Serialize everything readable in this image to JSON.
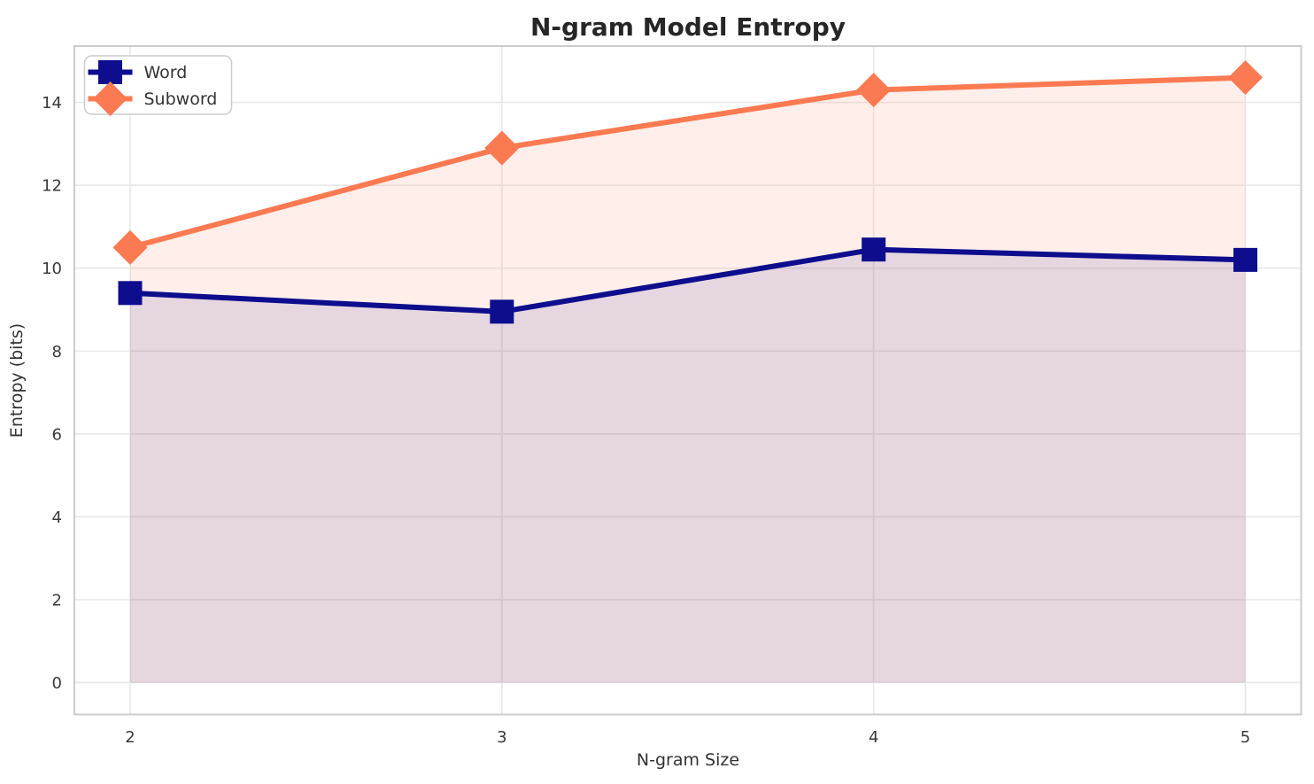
{
  "chart_data": {
    "type": "line",
    "title": "N-gram Model Entropy",
    "xlabel": "N-gram Size",
    "ylabel": "Entropy (bits)",
    "x": [
      2,
      3,
      4,
      5
    ],
    "series": [
      {
        "name": "Word",
        "marker": "square",
        "color": "#0d0d8e",
        "fill_alpha": 0.1,
        "values": [
          9.4,
          8.95,
          10.45,
          10.2
        ]
      },
      {
        "name": "Subword",
        "marker": "diamond",
        "color": "#fc7a52",
        "fill_alpha": 0.13,
        "values": [
          10.5,
          12.9,
          14.3,
          14.6
        ]
      }
    ],
    "xticks": [
      2,
      3,
      4,
      5
    ],
    "yticks": [
      0,
      2,
      4,
      6,
      8,
      10,
      12,
      14
    ],
    "xlim": [
      1.85,
      5.15
    ],
    "ylim": [
      -0.77,
      15.36
    ],
    "area_baseline": 0,
    "grid": true,
    "legend_position": "upper left",
    "legend_entries": [
      "Word",
      "Subword"
    ]
  },
  "styles": {
    "background": "#ffffff",
    "grid_color": "#e8e8e8",
    "spine_color": "#cccccc",
    "title_color": "#262626",
    "tick_color": "#3a3a3a",
    "label_color": "#333333",
    "legend_border": "#cccccc",
    "legend_background": "#ffffff"
  }
}
